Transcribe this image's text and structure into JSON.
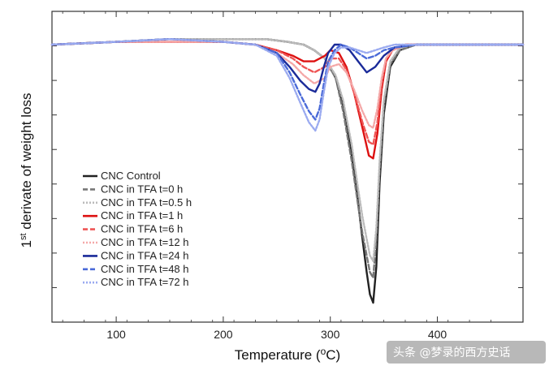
{
  "chart_data": {
    "type": "line",
    "title": "",
    "xlabel_main": "Temperature (",
    "xlabel_sup": "o",
    "xlabel_end": "C)",
    "ylabel_sup": "st",
    "ylabel_num": "1",
    "ylabel_rest": " derivate of weight loss",
    "xlim": [
      40,
      480
    ],
    "ylim": [
      -1.0,
      0.12
    ],
    "xticks": [
      100,
      200,
      300,
      400
    ],
    "xtick_labels": [
      "100",
      "200",
      "300",
      "400"
    ],
    "ytick_count": 8,
    "grid": false,
    "legend_position": "lower-left",
    "series": [
      {
        "name": "CNC Control",
        "color": "#222222",
        "style": "solid",
        "x": [
          40,
          100,
          150,
          200,
          240,
          260,
          275,
          285,
          295,
          305,
          312,
          320,
          326,
          330,
          334,
          337,
          340,
          343,
          346,
          350,
          356,
          365,
          380,
          400,
          440,
          480
        ],
        "y": [
          0,
          0.01,
          0.02,
          0.02,
          0.02,
          0.01,
          0,
          -0.02,
          -0.05,
          -0.12,
          -0.22,
          -0.4,
          -0.57,
          -0.7,
          -0.82,
          -0.9,
          -0.93,
          -0.8,
          -0.5,
          -0.25,
          -0.08,
          -0.02,
          0,
          0,
          0,
          0
        ]
      },
      {
        "name": "CNC in TFA t=0 h",
        "color": "#777777",
        "style": "dashed",
        "x": [
          40,
          100,
          150,
          200,
          240,
          260,
          275,
          285,
          295,
          305,
          312,
          320,
          326,
          330,
          334,
          337,
          340,
          343,
          346,
          350,
          356,
          365,
          380,
          400,
          440,
          480
        ],
        "y": [
          0,
          0.01,
          0.02,
          0.02,
          0.02,
          0.01,
          0,
          -0.02,
          -0.05,
          -0.12,
          -0.24,
          -0.42,
          -0.58,
          -0.68,
          -0.76,
          -0.82,
          -0.84,
          -0.7,
          -0.45,
          -0.22,
          -0.07,
          -0.02,
          0,
          0,
          0,
          0
        ]
      },
      {
        "name": "CNC in TFA t=0.5 h",
        "color": "#bbbbbb",
        "style": "dotted",
        "x": [
          40,
          100,
          150,
          200,
          240,
          260,
          275,
          285,
          295,
          305,
          312,
          320,
          326,
          330,
          334,
          337,
          340,
          343,
          346,
          350,
          356,
          365,
          380,
          400,
          440,
          480
        ],
        "y": [
          0,
          0.01,
          0.02,
          0.02,
          0.02,
          0.01,
          0,
          -0.02,
          -0.05,
          -0.11,
          -0.2,
          -0.36,
          -0.52,
          -0.62,
          -0.7,
          -0.76,
          -0.78,
          -0.66,
          -0.42,
          -0.2,
          -0.06,
          -0.01,
          0,
          0,
          0,
          0
        ]
      },
      {
        "name": "CNC in TFA t=1 h",
        "color": "#dd1111",
        "style": "solid",
        "x": [
          40,
          100,
          150,
          200,
          230,
          250,
          265,
          275,
          285,
          295,
          300,
          308,
          315,
          322,
          330,
          336,
          340,
          344,
          348,
          352,
          358,
          370,
          390,
          420,
          480
        ],
        "y": [
          0,
          0.01,
          0.01,
          0.01,
          0,
          -0.02,
          -0.04,
          -0.06,
          -0.06,
          -0.04,
          -0.02,
          -0.03,
          -0.08,
          -0.17,
          -0.3,
          -0.4,
          -0.41,
          -0.32,
          -0.16,
          -0.06,
          -0.02,
          0,
          0,
          0,
          0
        ]
      },
      {
        "name": "CNC in TFA t=6 h",
        "color": "#ee5555",
        "style": "dashed",
        "x": [
          40,
          100,
          150,
          200,
          230,
          250,
          265,
          275,
          285,
          295,
          300,
          308,
          315,
          322,
          330,
          336,
          340,
          344,
          348,
          352,
          358,
          370,
          390,
          420,
          480
        ],
        "y": [
          0,
          0.01,
          0.01,
          0.01,
          0,
          -0.02,
          -0.05,
          -0.08,
          -0.1,
          -0.08,
          -0.05,
          -0.05,
          -0.09,
          -0.17,
          -0.28,
          -0.35,
          -0.36,
          -0.28,
          -0.14,
          -0.05,
          -0.02,
          0,
          0,
          0,
          0
        ]
      },
      {
        "name": "CNC in TFA t=12 h",
        "color": "#f4a8a8",
        "style": "dotted",
        "x": [
          40,
          100,
          150,
          200,
          230,
          250,
          265,
          275,
          285,
          295,
          300,
          308,
          315,
          322,
          330,
          336,
          340,
          344,
          348,
          352,
          358,
          370,
          390,
          420,
          480
        ],
        "y": [
          0,
          0.01,
          0.01,
          0.01,
          0,
          -0.03,
          -0.07,
          -0.11,
          -0.14,
          -0.12,
          -0.08,
          -0.07,
          -0.1,
          -0.16,
          -0.24,
          -0.29,
          -0.3,
          -0.23,
          -0.12,
          -0.05,
          -0.02,
          0,
          0,
          0,
          0
        ]
      },
      {
        "name": "CNC in TFA t=24 h",
        "color": "#1a2a99",
        "style": "solid",
        "x": [
          40,
          100,
          150,
          200,
          230,
          250,
          262,
          272,
          280,
          286,
          290,
          294,
          298,
          304,
          310,
          318,
          326,
          334,
          342,
          350,
          360,
          380,
          420,
          480
        ],
        "y": [
          0,
          0.01,
          0.02,
          0.01,
          0,
          -0.03,
          -0.08,
          -0.13,
          -0.16,
          -0.17,
          -0.14,
          -0.08,
          -0.03,
          0,
          0,
          -0.02,
          -0.06,
          -0.1,
          -0.08,
          -0.04,
          -0.01,
          0,
          0,
          0
        ]
      },
      {
        "name": "CNC in TFA t=48 h",
        "color": "#4a6ad8",
        "style": "dashed",
        "x": [
          40,
          100,
          150,
          200,
          230,
          250,
          262,
          272,
          280,
          286,
          290,
          294,
          298,
          304,
          310,
          318,
          326,
          334,
          342,
          350,
          360,
          380,
          420,
          480
        ],
        "y": [
          0,
          0.01,
          0.02,
          0.01,
          0,
          -0.03,
          -0.1,
          -0.18,
          -0.24,
          -0.27,
          -0.23,
          -0.14,
          -0.06,
          -0.02,
          0,
          -0.01,
          -0.03,
          -0.05,
          -0.04,
          -0.02,
          -0.01,
          0,
          0,
          0
        ]
      },
      {
        "name": "CNC in TFA t=72 h",
        "color": "#9aaaf0",
        "style": "dotted",
        "x": [
          40,
          100,
          150,
          200,
          230,
          250,
          262,
          272,
          280,
          286,
          290,
          294,
          298,
          304,
          310,
          318,
          326,
          334,
          342,
          350,
          360,
          380,
          420,
          480
        ],
        "y": [
          0,
          0.01,
          0.02,
          0.01,
          0,
          -0.04,
          -0.12,
          -0.21,
          -0.28,
          -0.31,
          -0.27,
          -0.17,
          -0.08,
          -0.03,
          -0.01,
          -0.01,
          -0.02,
          -0.03,
          -0.02,
          -0.01,
          0,
          0,
          0,
          0
        ]
      }
    ]
  },
  "watermark": "头条 @梦录的西方史话"
}
